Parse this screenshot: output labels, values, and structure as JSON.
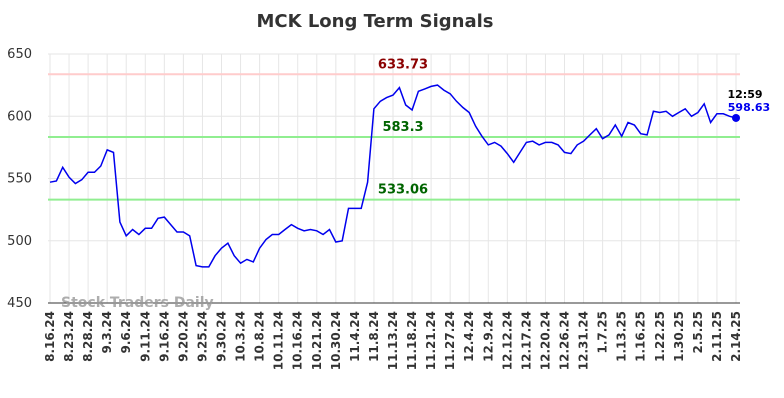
{
  "chart_data": {
    "type": "line",
    "title": "MCK Long Term Signals",
    "categories": [
      "8.16.24",
      null,
      null,
      "8.23.24",
      null,
      null,
      "8.28.24",
      null,
      null,
      "9.3.24",
      null,
      null,
      "9.6.24",
      null,
      null,
      "9.11.24",
      null,
      null,
      "9.16.24",
      null,
      null,
      "9.20.24",
      null,
      null,
      "9.25.24",
      null,
      null,
      "9.30.24",
      null,
      null,
      "10.3.24",
      null,
      null,
      "10.8.24",
      null,
      null,
      "10.11.24",
      null,
      null,
      "10.16.24",
      null,
      null,
      "10.21.24",
      null,
      null,
      "10.30.24",
      null,
      null,
      "11.4.24",
      null,
      null,
      "11.8.24",
      null,
      null,
      "11.13.24",
      null,
      null,
      "11.18.24",
      null,
      null,
      "11.21.24",
      null,
      null,
      "11.27.24",
      null,
      null,
      "12.4.24",
      null,
      null,
      "12.9.24",
      null,
      null,
      "12.12.24",
      null,
      null,
      "12.17.24",
      null,
      null,
      "12.20.24",
      null,
      null,
      "12.26.24",
      null,
      null,
      "12.31.24",
      null,
      null,
      "1.7.25",
      null,
      null,
      "1.13.25",
      null,
      null,
      "1.16.25",
      null,
      null,
      "1.22.25",
      null,
      null,
      "1.30.25",
      null,
      null,
      "2.5.25",
      null,
      null,
      "2.11.25",
      null,
      null,
      "2.14.25"
    ],
    "values": [
      547,
      548,
      559,
      551,
      546,
      549,
      555,
      555,
      560,
      573,
      571,
      515,
      504,
      509,
      505,
      510,
      510,
      518,
      519,
      513,
      507,
      507,
      504,
      480,
      479,
      479,
      488,
      494,
      498,
      488,
      482,
      485,
      483,
      494,
      501,
      505,
      505,
      509,
      513,
      510,
      508,
      509,
      508,
      505,
      509,
      499,
      500,
      526,
      526,
      526,
      547,
      606,
      612,
      615,
      617,
      623,
      609,
      605,
      620,
      622,
      624,
      625,
      621,
      618,
      612,
      607,
      603,
      592,
      584,
      577,
      579,
      576,
      570,
      563,
      571,
      579,
      580,
      577,
      579,
      579,
      577,
      571,
      570,
      577,
      580,
      585,
      590,
      582,
      585,
      593,
      584,
      595,
      593,
      586,
      585,
      604,
      603,
      604,
      600,
      603,
      606,
      600,
      603,
      610,
      595,
      602,
      602,
      600,
      598.63
    ],
    "color": "#0000ee",
    "ylim": [
      450,
      650
    ],
    "yticks": [
      450,
      500,
      550,
      600,
      650
    ],
    "grid": true,
    "reference_lines": [
      {
        "value": 633.73,
        "color": "#ffcccc",
        "label_color": "#8b0000"
      },
      {
        "value": 583.3,
        "color": "#90ee90",
        "label_color": "#006400"
      },
      {
        "value": 533.06,
        "color": "#90ee90",
        "label_color": "#006400"
      }
    ],
    "last_time": "12:59",
    "watermark": "Stock Traders Daily"
  }
}
